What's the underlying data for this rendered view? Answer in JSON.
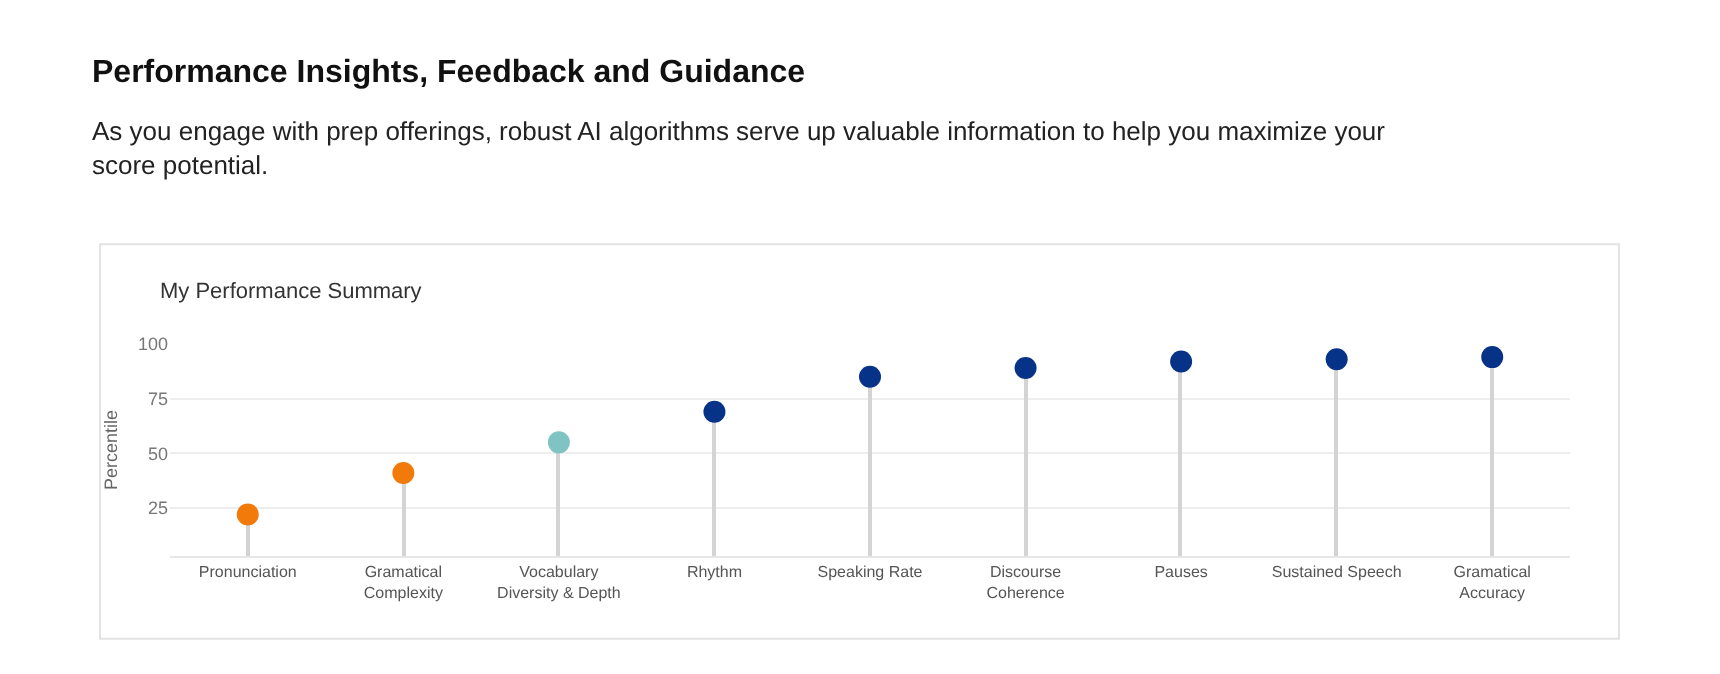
{
  "chart_data": {
    "type": "lollipop",
    "title": "Performance Insights, Feedback and Guidance",
    "subtitle": "As you engage with prep offerings, robust AI algorithms serve up valuable information to help you maximize your score potential.",
    "annotations": [
      "My Performance Summary"
    ],
    "ylabel": "Percentile",
    "categories": [
      "Pronunciation",
      "Gramatical Complexity",
      "Vocabulary Diversity & Depth",
      "Rhythm",
      "Speaking Rate",
      "Discourse Coherence",
      "Pauses",
      "Sustained Speech",
      "Gramatical Accuracy"
    ],
    "values": [
      22,
      41,
      55,
      69,
      85,
      89,
      92,
      93,
      94
    ],
    "colors": [
      "#f27a0a",
      "#f27a0a",
      "#7fc3c3",
      "#063287",
      "#063287",
      "#063287",
      "#063287",
      "#063287",
      "#063287"
    ],
    "ylim": [
      3,
      100
    ],
    "yticks": [
      25,
      50,
      75,
      100
    ],
    "grid": "y",
    "marker": "circle"
  }
}
